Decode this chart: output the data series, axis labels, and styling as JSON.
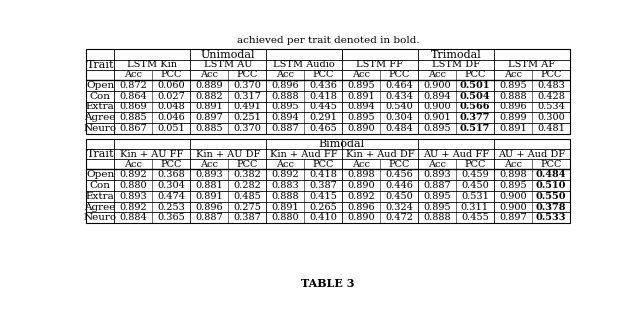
{
  "title_partial": "achieved per trait denoted in bold.",
  "table_caption": "TABLE 3",
  "unimodal_header": "Unimodal",
  "trimodal_header": "Trimodal",
  "bimodal_header": "Bimodal",
  "col_groups_uni_tri": [
    "LSTM Kin",
    "LSTM AU",
    "LSTM Audio",
    "LSTM FF",
    "LSTM DF",
    "LSTM AF"
  ],
  "col_groups_bi": [
    "Kin + AU FF",
    "Kin + AU DF",
    "Kin + Aud FF",
    "Kin + Aud DF",
    "AU + Aud FF",
    "AU + Aud DF"
  ],
  "sub_cols": [
    "Acc",
    "PCC"
  ],
  "traits": [
    "Open",
    "Con",
    "Extra",
    "Agree",
    "Neuro"
  ],
  "unimodal_tri_data": [
    [
      [
        0.872,
        0.06
      ],
      [
        0.889,
        0.37
      ],
      [
        0.896,
        0.436
      ],
      [
        0.895,
        0.464
      ],
      [
        0.9,
        0.501
      ],
      [
        0.895,
        0.483
      ]
    ],
    [
      [
        0.864,
        0.027
      ],
      [
        0.882,
        0.317
      ],
      [
        0.888,
        0.418
      ],
      [
        0.891,
        0.434
      ],
      [
        0.894,
        0.504
      ],
      [
        0.888,
        0.428
      ]
    ],
    [
      [
        0.869,
        0.048
      ],
      [
        0.891,
        0.491
      ],
      [
        0.895,
        0.445
      ],
      [
        0.894,
        0.54
      ],
      [
        0.9,
        0.566
      ],
      [
        0.896,
        0.534
      ]
    ],
    [
      [
        0.885,
        0.046
      ],
      [
        0.897,
        0.251
      ],
      [
        0.894,
        0.291
      ],
      [
        0.895,
        0.304
      ],
      [
        0.901,
        0.377
      ],
      [
        0.899,
        0.3
      ]
    ],
    [
      [
        0.867,
        0.051
      ],
      [
        0.885,
        0.37
      ],
      [
        0.887,
        0.465
      ],
      [
        0.89,
        0.484
      ],
      [
        0.895,
        0.517
      ],
      [
        0.891,
        0.481
      ]
    ]
  ],
  "bimodal_data": [
    [
      [
        0.892,
        0.368
      ],
      [
        0.893,
        0.382
      ],
      [
        0.892,
        0.418
      ],
      [
        0.898,
        0.456
      ],
      [
        0.893,
        0.459
      ],
      [
        0.898,
        0.484
      ]
    ],
    [
      [
        0.88,
        0.304
      ],
      [
        0.881,
        0.282
      ],
      [
        0.883,
        0.387
      ],
      [
        0.89,
        0.446
      ],
      [
        0.887,
        0.45
      ],
      [
        0.895,
        0.51
      ]
    ],
    [
      [
        0.893,
        0.474
      ],
      [
        0.891,
        0.485
      ],
      [
        0.888,
        0.415
      ],
      [
        0.892,
        0.45
      ],
      [
        0.895,
        0.531
      ],
      [
        0.9,
        0.55
      ]
    ],
    [
      [
        0.892,
        0.253
      ],
      [
        0.896,
        0.275
      ],
      [
        0.891,
        0.265
      ],
      [
        0.896,
        0.324
      ],
      [
        0.895,
        0.311
      ],
      [
        0.9,
        0.378
      ]
    ],
    [
      [
        0.884,
        0.365
      ],
      [
        0.887,
        0.387
      ],
      [
        0.88,
        0.41
      ],
      [
        0.89,
        0.472
      ],
      [
        0.888,
        0.455
      ],
      [
        0.897,
        0.533
      ]
    ]
  ],
  "bold_uni_tri": [
    [
      [
        false,
        false
      ],
      [
        false,
        false
      ],
      [
        false,
        false
      ],
      [
        false,
        false
      ],
      [
        false,
        true
      ],
      [
        false,
        false
      ]
    ],
    [
      [
        false,
        false
      ],
      [
        false,
        false
      ],
      [
        false,
        false
      ],
      [
        false,
        false
      ],
      [
        false,
        true
      ],
      [
        false,
        false
      ]
    ],
    [
      [
        false,
        false
      ],
      [
        false,
        false
      ],
      [
        false,
        false
      ],
      [
        false,
        false
      ],
      [
        false,
        true
      ],
      [
        false,
        false
      ]
    ],
    [
      [
        false,
        false
      ],
      [
        false,
        false
      ],
      [
        false,
        false
      ],
      [
        false,
        false
      ],
      [
        false,
        true
      ],
      [
        false,
        false
      ]
    ],
    [
      [
        false,
        false
      ],
      [
        false,
        false
      ],
      [
        false,
        false
      ],
      [
        false,
        false
      ],
      [
        false,
        true
      ],
      [
        false,
        false
      ]
    ]
  ],
  "bold_bi": [
    [
      [
        false,
        false
      ],
      [
        false,
        false
      ],
      [
        false,
        false
      ],
      [
        false,
        false
      ],
      [
        false,
        false
      ],
      [
        false,
        true
      ]
    ],
    [
      [
        false,
        false
      ],
      [
        false,
        false
      ],
      [
        false,
        false
      ],
      [
        false,
        false
      ],
      [
        false,
        false
      ],
      [
        false,
        true
      ]
    ],
    [
      [
        false,
        false
      ],
      [
        false,
        false
      ],
      [
        false,
        false
      ],
      [
        false,
        false
      ],
      [
        false,
        false
      ],
      [
        false,
        true
      ]
    ],
    [
      [
        false,
        false
      ],
      [
        false,
        false
      ],
      [
        false,
        false
      ],
      [
        false,
        false
      ],
      [
        false,
        false
      ],
      [
        false,
        true
      ]
    ],
    [
      [
        false,
        false
      ],
      [
        false,
        false
      ],
      [
        false,
        false
      ],
      [
        false,
        false
      ],
      [
        false,
        false
      ],
      [
        false,
        true
      ]
    ]
  ]
}
